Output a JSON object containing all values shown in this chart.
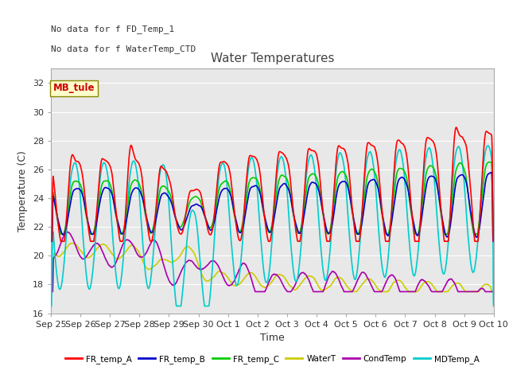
{
  "title": "Water Temperatures",
  "xlabel": "Time",
  "ylabel": "Temperature (C)",
  "ylim": [
    16,
    33
  ],
  "yticks": [
    16,
    18,
    20,
    22,
    24,
    26,
    28,
    30,
    32
  ],
  "background_color": "#e8e8e8",
  "plot_bg": "#f0f0f0",
  "text_color": "#555555",
  "series": {
    "FR_temp_A": {
      "color": "#ff0000",
      "lw": 1.2
    },
    "FR_temp_B": {
      "color": "#0000cc",
      "lw": 1.2
    },
    "FR_temp_C": {
      "color": "#00cc00",
      "lw": 1.2
    },
    "WaterT": {
      "color": "#cccc00",
      "lw": 1.2
    },
    "CondTemp": {
      "color": "#aa00aa",
      "lw": 1.2
    },
    "MDTemp_A": {
      "color": "#00cccc",
      "lw": 1.2
    }
  },
  "annotations": [
    "No data for f FD_Temp_1",
    "No data for f WaterTemp_CTD"
  ],
  "box_label": "MB_tule",
  "x_tick_labels": [
    "Sep 25",
    "Sep 26",
    "Sep 27",
    "Sep 28",
    "Sep 29",
    "Sep 30",
    "Oct 1",
    "Oct 2",
    "Oct 3",
    "Oct 4",
    "Oct 5",
    "Oct 6",
    "Oct 7",
    "Oct 8",
    "Oct 9",
    "Oct 10"
  ],
  "legend_entries": [
    "FR_temp_A",
    "FR_temp_B",
    "FR_temp_C",
    "WaterT",
    "CondTemp",
    "MDTemp_A"
  ],
  "legend_colors": [
    "#ff0000",
    "#0000cc",
    "#00cc00",
    "#cccc00",
    "#aa00aa",
    "#00cccc"
  ]
}
